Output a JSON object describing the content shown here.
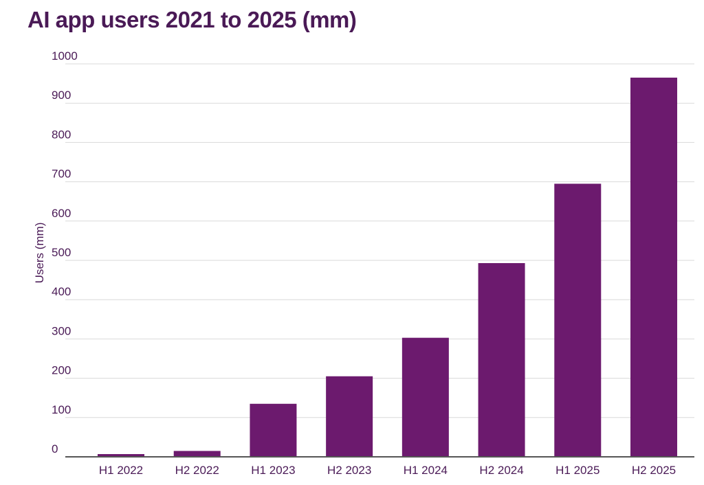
{
  "chart_data": {
    "type": "bar",
    "title": "AI app users 2021 to 2025 (mm)",
    "xlabel": "",
    "ylabel": "Users (mm)",
    "categories": [
      "H1 2022",
      "H2 2022",
      "H1 2023",
      "H2 2023",
      "H1 2024",
      "H2 2024",
      "H1 2025",
      "H2 2025"
    ],
    "values": [
      7,
      15,
      135,
      205,
      303,
      493,
      695,
      965
    ],
    "ylim": [
      0,
      1000
    ],
    "yticks": [
      0,
      100,
      200,
      300,
      400,
      500,
      600,
      700,
      800,
      900,
      1000
    ],
    "grid": true,
    "legend": "none",
    "colors": {
      "bar": "#6c1a6e",
      "text": "#4a1a56",
      "grid": "#d9d9d9",
      "axis": "#555555"
    }
  }
}
